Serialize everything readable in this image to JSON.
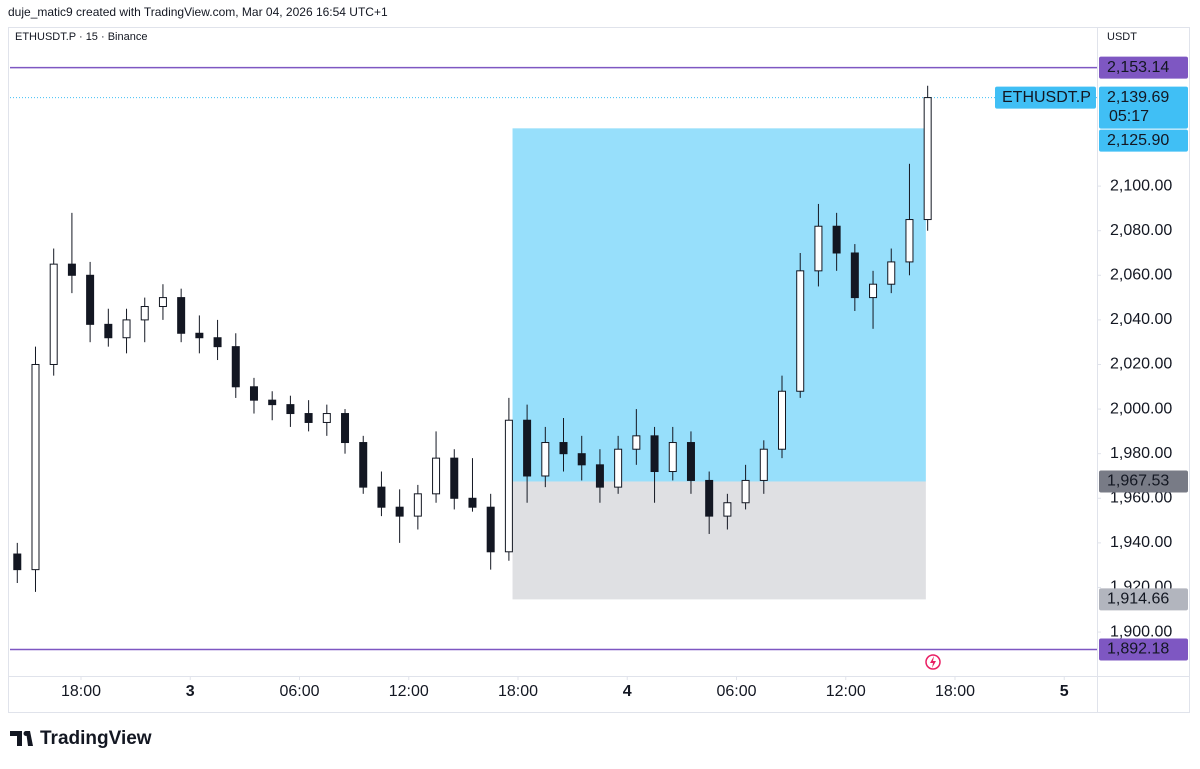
{
  "header": {
    "credit": "duje_matic9 created with TradingView.com, Mar 04, 2026 16:54 UTC+1",
    "symbol": "ETHUSDT.P · 15 · Binance",
    "currency": "USDT"
  },
  "footer": {
    "brand": "TradingView"
  },
  "chart_data": {
    "type": "candlestick",
    "x": [
      14.5,
      15.5,
      16.5,
      17.5,
      18.5,
      19.5,
      20.5,
      21.5,
      22.5,
      23.5,
      24.5,
      25.5,
      26.5,
      27.5,
      28.5,
      29.5,
      30.5,
      31.5,
      32.5,
      33.5,
      34.5,
      35.5,
      36.5,
      37.5,
      38.5,
      39.5,
      40.5,
      41.5,
      42.5,
      43.5,
      44.5,
      45.5,
      46.5,
      47.5,
      48.5,
      49.5,
      50.5,
      51.5,
      52.5,
      53.5,
      54.5,
      55.5,
      56.5,
      57.5,
      58.5,
      59.5,
      60.5,
      61.5,
      62.5,
      63.5,
      64.5
    ],
    "open": [
      1935,
      1928,
      2020,
      2065,
      2060,
      2038,
      2032,
      2040,
      2046,
      2050,
      2034,
      2032,
      2028,
      2010,
      2004,
      2002,
      1998,
      1994,
      1998,
      1985,
      1965,
      1956,
      1952,
      1962,
      1978,
      1960,
      1956,
      1936,
      1995,
      1970,
      1985,
      1980,
      1975,
      1965,
      1982,
      1988,
      1972,
      1985,
      1968,
      1952,
      1958,
      1968,
      1982,
      2008,
      2062,
      2082,
      2070,
      2050,
      2056,
      2066,
      2085
    ],
    "high": [
      1940,
      2028,
      2072,
      2088,
      2066,
      2045,
      2045,
      2050,
      2056,
      2054,
      2042,
      2040,
      2034,
      2014,
      2008,
      2006,
      2004,
      2002,
      2000,
      1988,
      1972,
      1964,
      1966,
      1990,
      1982,
      1978,
      1962,
      2005,
      2002,
      1992,
      1996,
      1988,
      1982,
      1988,
      2000,
      1992,
      1992,
      1990,
      1972,
      1962,
      1975,
      1986,
      2015,
      2070,
      2092,
      2088,
      2074,
      2062,
      2072,
      2110,
      2145
    ],
    "low": [
      1922,
      1918,
      2015,
      2052,
      2030,
      2028,
      2025,
      2030,
      2040,
      2030,
      2025,
      2022,
      2005,
      1998,
      1995,
      1992,
      1990,
      1988,
      1980,
      1962,
      1952,
      1940,
      1946,
      1958,
      1955,
      1954,
      1928,
      1932,
      1958,
      1965,
      1972,
      1968,
      1958,
      1962,
      1975,
      1958,
      1968,
      1962,
      1944,
      1946,
      1955,
      1962,
      1978,
      2005,
      2055,
      2062,
      2044,
      2036,
      2052,
      2060,
      2080
    ],
    "close": [
      1928,
      2020,
      2065,
      2060,
      2038,
      2032,
      2040,
      2046,
      2050,
      2034,
      2032,
      2028,
      2010,
      2004,
      2002,
      1998,
      1994,
      1998,
      1985,
      1965,
      1956,
      1952,
      1962,
      1978,
      1960,
      1956,
      1936,
      1995,
      1970,
      1985,
      1980,
      1975,
      1965,
      1982,
      1988,
      1972,
      1985,
      1968,
      1952,
      1958,
      1968,
      1982,
      2008,
      2062,
      2082,
      2070,
      2050,
      2056,
      2066,
      2085,
      2139.69
    ],
    "up_color": "#ffffff",
    "down_color": "#131722",
    "border_color": "#131722",
    "xlim": [
      14.1,
      73.8
    ],
    "xticks": [
      {
        "value": 18,
        "label": "18:00"
      },
      {
        "value": 24,
        "label": "3"
      },
      {
        "value": 30,
        "label": "06:00"
      },
      {
        "value": 36,
        "label": "12:00"
      },
      {
        "value": 42,
        "label": "18:00"
      },
      {
        "value": 48,
        "label": "4"
      },
      {
        "value": 54,
        "label": "06:00"
      },
      {
        "value": 60,
        "label": "12:00"
      },
      {
        "value": 66,
        "label": "18:00"
      },
      {
        "value": 72,
        "label": "5"
      }
    ],
    "ylim": [
      1880.3,
      2170.9
    ],
    "yticks": [
      {
        "value": 1900,
        "label": "1,900.00"
      },
      {
        "value": 1920,
        "label": "1,920.00"
      },
      {
        "value": 1940,
        "label": "1,940.00"
      },
      {
        "value": 1960,
        "label": "1,960.00"
      },
      {
        "value": 1980,
        "label": "1,980.00"
      },
      {
        "value": 2000,
        "label": "2,000.00"
      },
      {
        "value": 2020,
        "label": "2,020.00"
      },
      {
        "value": 2040,
        "label": "2,040.00"
      },
      {
        "value": 2060,
        "label": "2,060.00"
      },
      {
        "value": 2080,
        "label": "2,080.00"
      },
      {
        "value": 2100,
        "label": "2,100.00"
      }
    ],
    "grid": false,
    "lines": [
      {
        "value": 2153.14,
        "label": "2,153.14",
        "color": "#7e57c2"
      },
      {
        "value": 1892.18,
        "label": "1,892.18",
        "color": "#7e57c2"
      }
    ],
    "last_price": {
      "value": 2139.69,
      "label": "2,139.69",
      "symbol": "ETHUSDT.P",
      "countdown": "05:17",
      "color": "#40bff5"
    },
    "position": {
      "x": [
        41.7,
        64.4
      ],
      "target": {
        "value": 2125.9,
        "label": "2,125.90",
        "color": "#40bff5"
      },
      "entry": {
        "value": 1967.53,
        "label": "1,967.53",
        "color": "#787b86"
      },
      "stop": {
        "value": 1914.66,
        "label": "1,914.66",
        "color": "#b2b5be"
      },
      "profit_color": "#97dffb",
      "loss_color": "#dfe0e3"
    }
  }
}
